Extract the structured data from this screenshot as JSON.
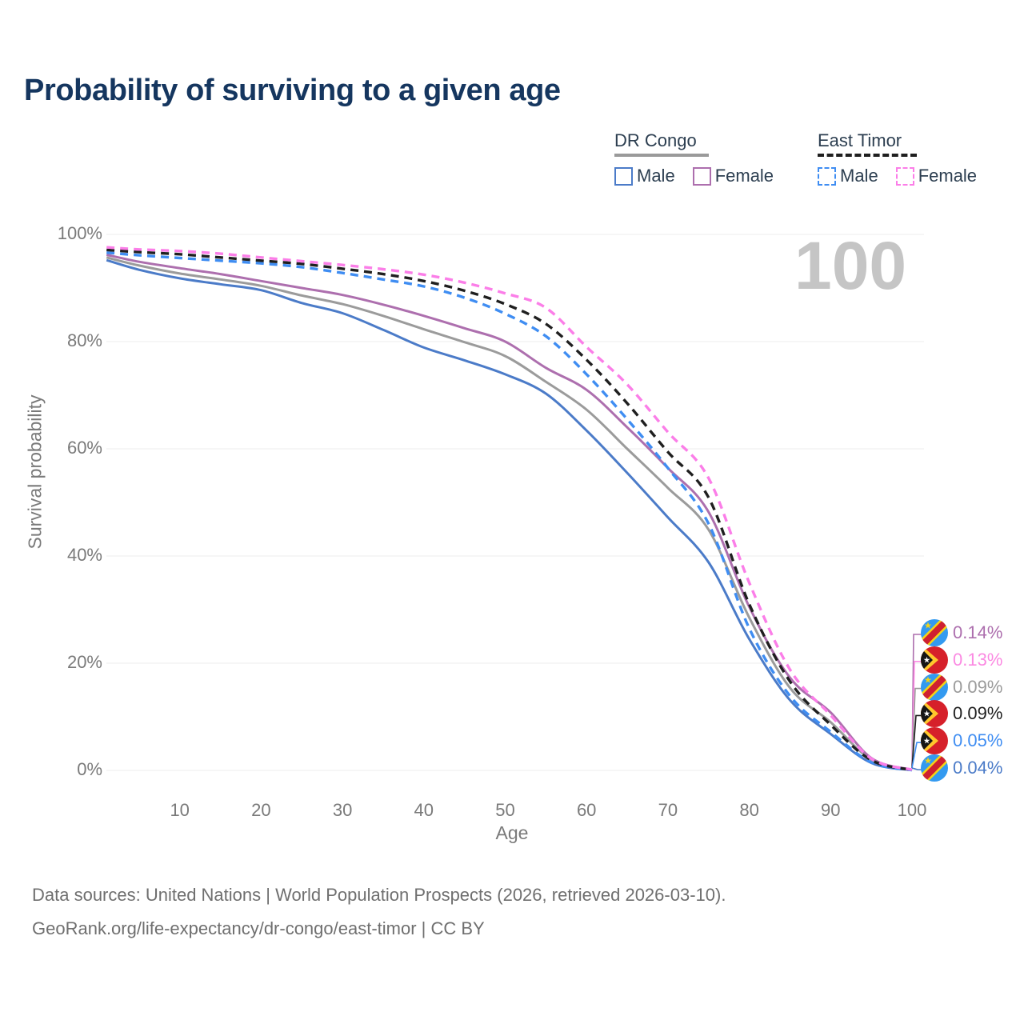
{
  "title": "Probability of surviving to a given age",
  "watermark": "100",
  "legend": {
    "groups": [
      {
        "label": "DR Congo",
        "line_style": "solid",
        "underline_color": "#9a9a9a",
        "items": [
          {
            "label": "Male",
            "color": "#4b7bc8"
          },
          {
            "label": "Female",
            "color": "#ad6fae"
          }
        ]
      },
      {
        "label": "East Timor",
        "line_style": "dashed",
        "underline_color": "#1f1f1f",
        "items": [
          {
            "label": "Male",
            "color": "#3f8df2"
          },
          {
            "label": "Female",
            "color": "#fb7ee8"
          }
        ]
      }
    ]
  },
  "chart_data": {
    "type": "line",
    "xlabel": "Age",
    "ylabel": "Survival probability",
    "x_ticks": [
      10,
      20,
      30,
      40,
      50,
      60,
      70,
      80,
      90,
      100
    ],
    "y_ticks": [
      "0%",
      "20%",
      "40%",
      "60%",
      "80%",
      "100%"
    ],
    "xlim": [
      1,
      100
    ],
    "ylim": [
      0,
      100
    ],
    "grid": "horizontal",
    "legend_position": "top-right",
    "x": [
      1,
      5,
      10,
      15,
      20,
      25,
      30,
      35,
      40,
      45,
      50,
      55,
      60,
      65,
      70,
      75,
      80,
      85,
      90,
      95,
      100
    ],
    "series": [
      {
        "name": "DR Congo Male",
        "country": "DR Congo",
        "sex": "male",
        "color": "#4b7bc8",
        "dashed": false,
        "values": [
          95.2,
          93.4,
          91.8,
          90.7,
          89.6,
          87.2,
          85.3,
          82.2,
          78.9,
          76.5,
          73.9,
          70.3,
          63.4,
          55.5,
          47.2,
          38.8,
          24.5,
          13.1,
          6.8,
          1.4,
          0.04
        ]
      },
      {
        "name": "DR Congo Both Sexes",
        "country": "DR Congo",
        "sex": "both",
        "color": "#9b9b9b",
        "dashed": false,
        "values": [
          95.7,
          94.2,
          92.7,
          91.6,
          90.4,
          88.6,
          87.0,
          84.8,
          82.3,
          79.9,
          77.3,
          72.5,
          67.3,
          60.0,
          52.7,
          44.9,
          28.5,
          15.4,
          9.0,
          2.0,
          0.09
        ]
      },
      {
        "name": "DR Congo Female",
        "country": "DR Congo",
        "sex": "female",
        "color": "#ad6fae",
        "dashed": false,
        "values": [
          96.2,
          94.9,
          93.7,
          92.6,
          91.3,
          90.0,
          88.7,
          86.9,
          84.8,
          82.5,
          80.0,
          75.1,
          71.0,
          64.0,
          56.4,
          48.2,
          30.5,
          17.3,
          10.8,
          2.3,
          0.14
        ]
      },
      {
        "name": "East Timor Male",
        "country": "East Timor",
        "sex": "male",
        "color": "#3f8df2",
        "dashed": true,
        "values": [
          96.6,
          96.1,
          95.6,
          95.1,
          94.6,
          93.9,
          92.8,
          91.6,
          90.3,
          88.2,
          85.2,
          81.0,
          73.9,
          65.5,
          56.4,
          46.0,
          26.5,
          13.9,
          7.2,
          1.5,
          0.05
        ]
      },
      {
        "name": "East Timor Both Sexes",
        "country": "East Timor",
        "sex": "both",
        "color": "#1f1f1f",
        "dashed": true,
        "values": [
          97.1,
          96.7,
          96.3,
          95.7,
          95.1,
          94.5,
          93.6,
          92.6,
          91.3,
          89.5,
          87.0,
          83.3,
          76.6,
          68.5,
          59.4,
          50.9,
          31.0,
          16.6,
          8.5,
          1.9,
          0.09
        ]
      },
      {
        "name": "East Timor Female",
        "country": "East Timor",
        "sex": "female",
        "color": "#fb7ee8",
        "dashed": true,
        "values": [
          97.6,
          97.2,
          96.9,
          96.4,
          95.7,
          95.0,
          94.3,
          93.5,
          92.5,
          91.0,
          89.0,
          86.3,
          79.0,
          72.0,
          63.1,
          54.5,
          35.0,
          18.8,
          10.3,
          2.2,
          0.13
        ]
      }
    ]
  },
  "end_labels": [
    {
      "series": "DR Congo Female",
      "flag": "dr-congo-flag-icon",
      "value": "0.14%",
      "color": "#ad6fae"
    },
    {
      "series": "East Timor Female",
      "flag": "east-timor-flag-icon",
      "value": "0.13%",
      "color": "#fb8ae2"
    },
    {
      "series": "DR Congo Both Sexes",
      "flag": "dr-congo-flag-icon",
      "value": "0.09%",
      "color": "#9b9b9b"
    },
    {
      "series": "East Timor Both Sexes",
      "flag": "east-timor-flag-icon",
      "value": "0.09%",
      "color": "#1f1f1f"
    },
    {
      "series": "East Timor Male",
      "flag": "east-timor-flag-icon",
      "value": "0.05%",
      "color": "#3f8df2"
    },
    {
      "series": "DR Congo Male",
      "flag": "dr-congo-flag-icon",
      "value": "0.04%",
      "color": "#4b7bc8"
    }
  ],
  "footer": {
    "line1": "Data sources: United Nations | World Population Prospects (2026, retrieved 2026-03-10).",
    "line2": "GeoRank.org/life-expectancy/dr-congo/east-timor | CC BY"
  }
}
